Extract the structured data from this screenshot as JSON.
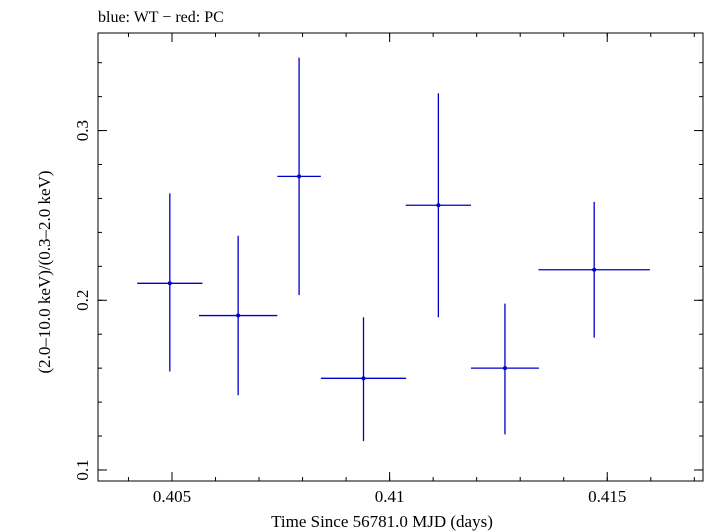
{
  "chart_data": {
    "type": "scatter",
    "title": "blue: WT − red: PC",
    "xlabel": "Time Since 56781.0 MJD (days)",
    "ylabel": "(2.0–10.0 keV)/(0.3–2.0 keV)",
    "xlim": [
      0.4033,
      0.4172
    ],
    "ylim": [
      0.0935,
      0.3575
    ],
    "x_ticks": [
      {
        "value": 0.405,
        "label": "0.405"
      },
      {
        "value": 0.41,
        "label": "0.41"
      },
      {
        "value": 0.415,
        "label": "0.415"
      }
    ],
    "y_ticks": [
      {
        "value": 0.1,
        "label": "0.1"
      },
      {
        "value": 0.2,
        "label": "0.2"
      },
      {
        "value": 0.3,
        "label": "0.3"
      }
    ],
    "grid": false,
    "series": [
      {
        "name": "WT",
        "color": "#0000cc",
        "points": [
          {
            "x": 0.40495,
            "xerr": [
              0.00075,
              0.00075
            ],
            "y": 0.21,
            "yerr": [
              0.052,
              0.053
            ]
          },
          {
            "x": 0.40652,
            "xerr": [
              0.0009,
              0.0009
            ],
            "y": 0.191,
            "yerr": [
              0.047,
              0.047
            ]
          },
          {
            "x": 0.40792,
            "xerr": [
              0.0005,
              0.0005
            ],
            "y": 0.273,
            "yerr": [
              0.07,
              0.07
            ]
          },
          {
            "x": 0.4094,
            "xerr": [
              0.00098,
              0.00098
            ],
            "y": 0.154,
            "yerr": [
              0.037,
              0.036
            ]
          },
          {
            "x": 0.41112,
            "xerr": [
              0.00075,
              0.00075
            ],
            "y": 0.256,
            "yerr": [
              0.066,
              0.066
            ]
          },
          {
            "x": 0.41265,
            "xerr": [
              0.00078,
              0.00078
            ],
            "y": 0.16,
            "yerr": [
              0.039,
              0.038
            ]
          },
          {
            "x": 0.4147,
            "xerr": [
              0.00128,
              0.00128
            ],
            "y": 0.218,
            "yerr": [
              0.04,
              0.04
            ]
          }
        ]
      }
    ]
  }
}
